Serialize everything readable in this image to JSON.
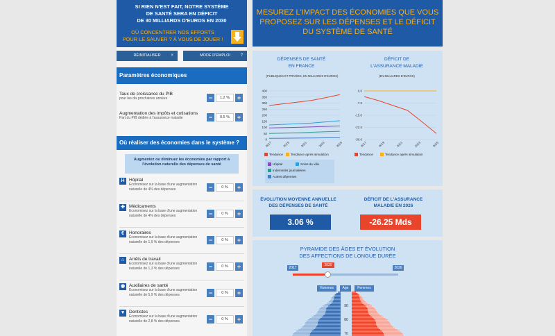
{
  "left": {
    "banner": {
      "line1": "SI RIEN N'EST FAIT, NOTRE SYSTÈME",
      "line2": "DE SANTÉ SERA EN DÉFICIT",
      "line3": "DE 30 MILLIARDS D'EUROS EN 2030",
      "question1": "OÙ CONCENTRER NOS EFFORTS",
      "question2": "POUR LE SAUVER ? À VOUS DE JOUER !",
      "arrow_icon": "arrow-down-icon"
    },
    "buttons": {
      "reset": "RÉINITIALISER",
      "reset_icon": "×",
      "howto": "MODE D'EMPLOI",
      "howto_icon": "?"
    },
    "econ": {
      "heading": "Paramètres économiques",
      "rows": [
        {
          "title": "Taux de croissance du PIB",
          "sub": "pour les dix prochaines années",
          "value": "1.2 %"
        },
        {
          "title": "Augmentation des impôts et cotisations",
          "sub": "Part du PIB dédiée à l'assurance maladie",
          "value": "0.5 %"
        }
      ]
    },
    "savings": {
      "heading": "Où réaliser des économies dans le système ?",
      "info1": "Augmentez ou diminuez les économies par rapport à",
      "info2": "l'évolution naturelle des dépenses de santé",
      "rows": [
        {
          "icon": "H",
          "title": "Hôpital",
          "sub1": "Economisez sur la base d'une augmentation",
          "sub2": "naturelle de 4% des dépenses",
          "value": "0 %"
        },
        {
          "icon": "✚",
          "title": "Médicaments",
          "sub1": "Economisez sur la base d'une augmentation",
          "sub2": "naturelle de 4% des dépenses",
          "value": "0 %"
        },
        {
          "icon": "€",
          "title": "Honoraires",
          "sub1": "Economisez sur la base d'une augmentation",
          "sub2": "naturelle de 1,9 % des dépenses",
          "value": "0 %"
        },
        {
          "icon": "⌂",
          "title": "Arrêts de travail",
          "sub1": "Economisez sur la base d'une augmentation",
          "sub2": "naturelle de 1,3 % des dépenses",
          "value": "0 %"
        },
        {
          "icon": "◉",
          "title": "Auxiliaires de santé",
          "sub1": "Economisez sur la base d'une augmentation",
          "sub2": "naturelle de 5,9 % des dépenses",
          "value": "0 %"
        },
        {
          "icon": "▾",
          "title": "Dentistes",
          "sub1": "Economisez sur la base d'une augmentation",
          "sub2": "naturelle de 2,8 % des dépenses",
          "value": "0 %"
        }
      ]
    }
  },
  "right": {
    "banner1": "MESUREZ L'IMPACT DES ÉCONOMIES QUE VOUS",
    "banner2": "PROPOSEZ SUR LES DÉPENSES ET LE DÉFICIT",
    "banner3": "DU SYSTÈME DE SANTÉ",
    "chart1": {
      "title1": "DÉPENSES DE SANTÉ",
      "title2": "EN FRANCE",
      "sub": "(PUBLIQUES ET PRIVÉES, EN MILLIARDS D'EUROS)"
    },
    "chart2": {
      "title1": "DÉFICIT DE",
      "title2": "L'ASSURANCE MALADIE",
      "sub": "(EN MILLIARDS D'EUROS)"
    },
    "legend": {
      "tendance": "Tendance",
      "simulation": "Tendance après simulation",
      "hopital": "Hôpital",
      "soins": "Soins de ville",
      "indemnites": "Indemnités journalières",
      "autres": "Autres dépenses"
    },
    "kpi": {
      "evo_title1": "ÉVOLUTION MOYENNE ANNUELLE",
      "evo_title2": "DES DÉPENSES DE SANTÉ",
      "evo_value": "3.06 %",
      "def_title1": "DÉFICIT DE L'ASSURANCE",
      "def_title2": "MALADIE EN 2026",
      "def_value": "-26.25 Mds"
    },
    "pyramid": {
      "title1": "PYRAMIDE DES ÂGES ET ÉVOLUTION",
      "title2": "DES AFFECTIONS DE LONGUE DURÉE",
      "year_start": "2017",
      "year_current": "2020",
      "year_end": "2026",
      "hommes": "Hommes",
      "age": "Age",
      "femmes": "Femmes",
      "age_labels": [
        "90",
        "80",
        "70"
      ]
    }
  },
  "chart_data": [
    {
      "type": "line",
      "x": [
        "2017",
        "2018",
        "2019",
        "2020",
        "2023",
        "2026"
      ],
      "xticks": [
        "2017",
        "2019",
        "2021",
        "2023",
        "2025"
      ],
      "yticks": [
        "0",
        "50",
        "100",
        "150",
        "200",
        "250",
        "300",
        "350",
        "400"
      ],
      "ylim": [
        0,
        400
      ],
      "series": [
        {
          "name": "Tendance",
          "color": "#e8452c",
          "values": [
            280,
            294,
            308,
            322,
            345,
            370
          ]
        },
        {
          "name": "Hôpital",
          "color": "#7b52b9",
          "values": [
            95,
            98,
            101,
            104,
            108,
            112
          ]
        },
        {
          "name": "Soins de ville",
          "color": "#2f9fd6",
          "values": [
            120,
            125,
            130,
            136,
            145,
            155
          ]
        },
        {
          "name": "Indemnités journalières",
          "color": "#2a9d8f",
          "values": [
            50,
            53,
            56,
            60,
            64,
            68
          ]
        },
        {
          "name": "Autres dépenses",
          "color": "#4a7fbf",
          "values": [
            10,
            11,
            12,
            13,
            14,
            15
          ]
        }
      ]
    },
    {
      "type": "line",
      "x": [
        "2017",
        "2018",
        "2019",
        "2020",
        "2023",
        "2026"
      ],
      "xticks": [
        "2017",
        "2019",
        "2021",
        "2023",
        "2025"
      ],
      "yticks": [
        "0.0",
        "-7.5",
        "-15.0",
        "-22.5",
        "-30.0"
      ],
      "ylim": [
        -30,
        0
      ],
      "series": [
        {
          "name": "Tendance",
          "color": "#e8452c",
          "values": [
            -3.5,
            -6,
            -9,
            -12,
            -19,
            -26.25
          ]
        },
        {
          "name": "Tendance après simulation",
          "color": "#f7b11c",
          "values": [
            0,
            0,
            0,
            0,
            0,
            0
          ]
        }
      ]
    }
  ]
}
